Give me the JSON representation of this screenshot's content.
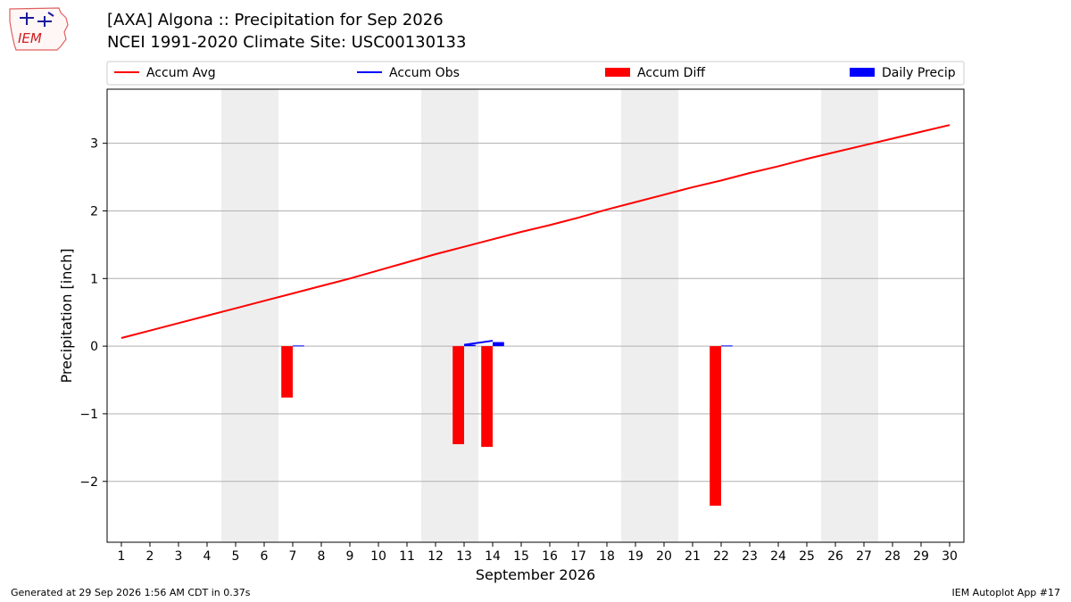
{
  "logo_text": "IEM",
  "header": {
    "title": "[AXA] Algona :: Precipitation for Sep 2026",
    "subtitle": "NCEI 1991-2020 Climate Site: USC00130133"
  },
  "footer": {
    "left": "Generated at 29 Sep 2026 1:56 AM CDT in 0.37s",
    "right": "IEM Autoplot App #17"
  },
  "colors": {
    "accum_avg": "#ff0000",
    "accum_obs": "#0000ff",
    "accum_diff": "#ff0000",
    "daily_precip": "#0000ff",
    "weekend_shade": "#eeeeee",
    "grid": "#b0b0b0"
  },
  "chart_data": {
    "type": "bar",
    "xlabel": "September 2026",
    "ylabel": "Precipitation [inch]",
    "xlim": [
      0.5,
      30.5
    ],
    "ylim": [
      -2.9,
      3.8
    ],
    "yticks": [
      -2,
      -1,
      0,
      1,
      2,
      3
    ],
    "ytick_labels": [
      "−2",
      "−1",
      "0",
      "1",
      "2",
      "3"
    ],
    "x_ticks": [
      1,
      2,
      3,
      4,
      5,
      6,
      7,
      8,
      9,
      10,
      11,
      12,
      13,
      14,
      15,
      16,
      17,
      18,
      19,
      20,
      21,
      22,
      23,
      24,
      25,
      26,
      27,
      28,
      29,
      30
    ],
    "weekend_spans": [
      [
        4.5,
        6.5
      ],
      [
        11.5,
        13.5
      ],
      [
        18.5,
        20.5
      ],
      [
        25.5,
        27.5
      ]
    ],
    "grid": "horizontal",
    "legend": {
      "placement": "top",
      "entries": [
        {
          "label": "Accum Avg",
          "kind": "line",
          "color": "#ff0000"
        },
        {
          "label": "Accum Obs",
          "kind": "line",
          "color": "#0000ff"
        },
        {
          "label": "Accum Diff",
          "kind": "bar",
          "color": "#ff0000"
        },
        {
          "label": "Daily Precip",
          "kind": "bar",
          "color": "#0000ff"
        }
      ]
    },
    "series": [
      {
        "name": "Accum Avg",
        "kind": "line",
        "x": [
          1,
          2,
          3,
          4,
          5,
          6,
          7,
          8,
          9,
          10,
          11,
          12,
          13,
          14,
          15,
          16,
          17,
          18,
          19,
          20,
          21,
          22,
          23,
          24,
          25,
          26,
          27,
          28,
          29,
          30
        ],
        "values": [
          0.12,
          0.23,
          0.34,
          0.45,
          0.56,
          0.67,
          0.78,
          0.89,
          1.0,
          1.12,
          1.24,
          1.36,
          1.47,
          1.58,
          1.69,
          1.79,
          1.9,
          2.02,
          2.13,
          2.24,
          2.35,
          2.45,
          2.56,
          2.66,
          2.77,
          2.87,
          2.97,
          3.07,
          3.17,
          3.27
        ]
      },
      {
        "name": "Accum Obs",
        "kind": "line",
        "x": [
          13,
          14
        ],
        "values": [
          0.02,
          0.08
        ]
      },
      {
        "name": "Accum Diff",
        "kind": "bar",
        "x": [
          7,
          13,
          14,
          22
        ],
        "values": [
          -0.76,
          -1.45,
          -1.49,
          -2.36
        ]
      },
      {
        "name": "Daily Precip",
        "kind": "bar",
        "x": [
          7,
          13,
          14,
          22
        ],
        "values": [
          0.01,
          0.02,
          0.06,
          0.01
        ]
      }
    ]
  }
}
